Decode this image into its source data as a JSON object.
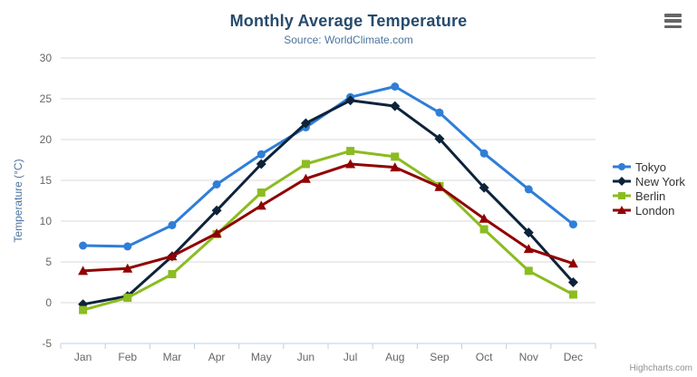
{
  "chart_data": {
    "type": "line",
    "title": "Monthly Average Temperature",
    "subtitle": "Source: WorldClimate.com",
    "xlabel": "",
    "ylabel": "Temperature (°C)",
    "categories": [
      "Jan",
      "Feb",
      "Mar",
      "Apr",
      "May",
      "Jun",
      "Jul",
      "Aug",
      "Sep",
      "Oct",
      "Nov",
      "Dec"
    ],
    "series": [
      {
        "name": "Tokyo",
        "color": "#2f7ed8",
        "marker": "circle",
        "values": [
          7.0,
          6.9,
          9.5,
          14.5,
          18.2,
          21.5,
          25.2,
          26.5,
          23.3,
          18.3,
          13.9,
          9.6
        ]
      },
      {
        "name": "New York",
        "color": "#0d233a",
        "marker": "diamond",
        "values": [
          -0.2,
          0.8,
          5.7,
          11.3,
          17.0,
          22.0,
          24.8,
          24.1,
          20.1,
          14.1,
          8.6,
          2.5
        ]
      },
      {
        "name": "Berlin",
        "color": "#8bbc21",
        "marker": "square",
        "values": [
          -0.9,
          0.6,
          3.5,
          8.4,
          13.5,
          17.0,
          18.6,
          17.9,
          14.3,
          9.0,
          3.9,
          1.0
        ]
      },
      {
        "name": "London",
        "color": "#910000",
        "marker": "triangle",
        "values": [
          3.9,
          4.2,
          5.7,
          8.5,
          11.9,
          15.2,
          17.0,
          16.6,
          14.2,
          10.3,
          6.6,
          4.8
        ]
      }
    ],
    "ylim": [
      -5,
      30
    ],
    "yticks": [
      -5,
      0,
      5,
      10,
      15,
      20,
      25,
      30
    ],
    "grid": true,
    "legend_position": "right"
  },
  "colors": {
    "title": "#274b6d",
    "subtitle": "#4d759e",
    "axis_label": "#666666",
    "axis_title": "#4d759e",
    "gridline": "#d8d8d8",
    "axis_line": "#c0d0e0",
    "legend_text": "#333333",
    "credits": "#909090"
  },
  "menu": {
    "icon": "hamburger-icon"
  },
  "credits": {
    "label": "Highcharts.com"
  }
}
